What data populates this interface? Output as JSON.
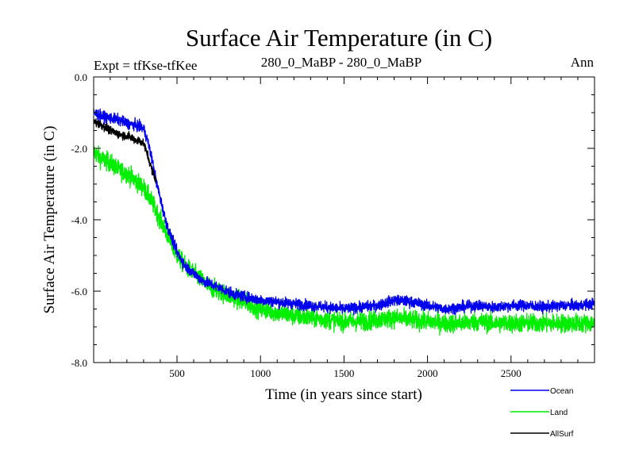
{
  "chart_data": {
    "type": "line",
    "title": "Surface Air Temperature (in C)",
    "subtitle_left": "Expt = tfKse-tfKee",
    "subtitle_center": "280_0_MaBP - 280_0_MaBP",
    "subtitle_right": "Ann",
    "xlabel": "Time (in years since start)",
    "ylabel": "Surface Air Temperature (in C)",
    "xlim": [
      1,
      3000
    ],
    "ylim": [
      -8.0,
      0.0
    ],
    "xticks": [
      {
        "value": 500,
        "label": "500"
      },
      {
        "value": 1000,
        "label": "1000"
      },
      {
        "value": 1500,
        "label": "1500"
      },
      {
        "value": 2000,
        "label": "2000"
      },
      {
        "value": 2500,
        "label": "2500"
      }
    ],
    "yticks": [
      {
        "value": 0.0,
        "label": "0.0"
      },
      {
        "value": -2.0,
        "label": "-2.0"
      },
      {
        "value": -4.0,
        "label": "-4.0"
      },
      {
        "value": -6.0,
        "label": "-6.0"
      },
      {
        "value": -8.0,
        "label": "-8.0"
      }
    ],
    "legend_position": "bottom-right",
    "series": [
      {
        "name": "Land",
        "color": "#00ee00",
        "noise": 0.26,
        "x": [
          1,
          50,
          100,
          150,
          200,
          250,
          300,
          350,
          400,
          450,
          500,
          550,
          600,
          650,
          700,
          750,
          800,
          850,
          900,
          950,
          1000,
          1100,
          1200,
          1300,
          1400,
          1500,
          1600,
          1700,
          1800,
          1900,
          2000,
          2100,
          2200,
          2300,
          2400,
          2500,
          2600,
          2700,
          2800,
          2900,
          3000
        ],
        "values": [
          -2.1,
          -2.3,
          -2.4,
          -2.6,
          -2.7,
          -2.9,
          -3.1,
          -3.5,
          -4.0,
          -4.5,
          -5.0,
          -5.3,
          -5.5,
          -5.7,
          -5.9,
          -6.0,
          -6.1,
          -6.2,
          -6.3,
          -6.4,
          -6.5,
          -6.6,
          -6.7,
          -6.75,
          -6.8,
          -6.85,
          -6.85,
          -6.8,
          -6.75,
          -6.8,
          -6.85,
          -6.9,
          -6.9,
          -6.85,
          -6.9,
          -6.9,
          -6.9,
          -6.9,
          -6.9,
          -6.9,
          -6.9
        ]
      },
      {
        "name": "Ocean",
        "color": "#0000ee",
        "noise": 0.15,
        "x": [
          1,
          50,
          100,
          150,
          200,
          250,
          300,
          325,
          350,
          375,
          400,
          425,
          450,
          500,
          550,
          600,
          650,
          700,
          750,
          800,
          850,
          900,
          950,
          1000,
          1100,
          1200,
          1300,
          1400,
          1500,
          1600,
          1700,
          1800,
          1900,
          2000,
          2100,
          2200,
          2300,
          2400,
          2500,
          2600,
          2700,
          2800,
          2900,
          3000
        ],
        "values": [
          -1.0,
          -1.1,
          -1.15,
          -1.2,
          -1.3,
          -1.35,
          -1.45,
          -1.8,
          -2.3,
          -2.9,
          -3.4,
          -3.9,
          -4.3,
          -4.9,
          -5.3,
          -5.5,
          -5.7,
          -5.8,
          -5.9,
          -6.0,
          -6.1,
          -6.15,
          -6.2,
          -6.25,
          -6.3,
          -6.35,
          -6.4,
          -6.45,
          -6.5,
          -6.45,
          -6.4,
          -6.25,
          -6.3,
          -6.4,
          -6.5,
          -6.45,
          -6.4,
          -6.45,
          -6.4,
          -6.4,
          -6.45,
          -6.4,
          -6.4,
          -6.35
        ]
      },
      {
        "name": "AllSurf",
        "color": "#000000",
        "noise": 0.12,
        "x": [
          1,
          50,
          100,
          150,
          200,
          250,
          300,
          325,
          350,
          375
        ],
        "values": [
          -1.25,
          -1.35,
          -1.5,
          -1.6,
          -1.65,
          -1.75,
          -1.85,
          -2.2,
          -2.6,
          -2.9
        ]
      }
    ],
    "legend": [
      {
        "name": "Ocean",
        "color": "#0000ee"
      },
      {
        "name": "Land",
        "color": "#00ee00"
      },
      {
        "name": "AllSurf",
        "color": "#000000"
      }
    ]
  }
}
